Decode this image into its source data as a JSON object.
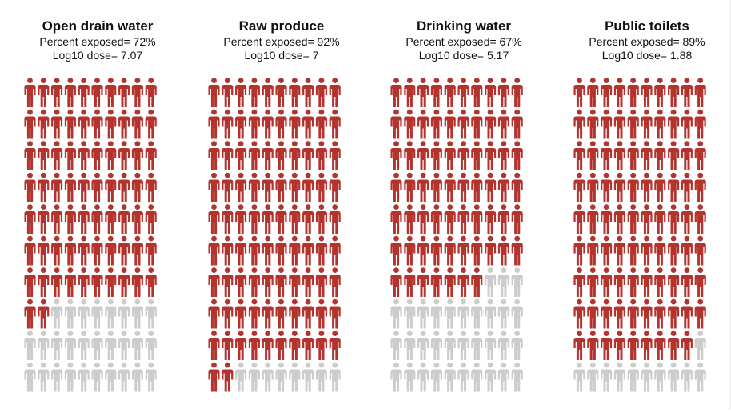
{
  "colors": {
    "exposed": "#b5332d",
    "unexposed": "#cccccc",
    "text": "#111111"
  },
  "icon": "person-icon",
  "grid": {
    "columns": 10,
    "rows": 10,
    "total": 100
  },
  "stat_labels": {
    "percent_exposed": "Percent exposed=",
    "log10_dose": "Log10 dose="
  },
  "chart_data": [
    {
      "type": "pictogram",
      "title": "Open drain water",
      "percent_exposed": "72%",
      "log10_dose": "7.07",
      "exposed_count": 72,
      "total": 100
    },
    {
      "type": "pictogram",
      "title": "Raw produce",
      "percent_exposed": "92%",
      "log10_dose": "7",
      "exposed_count": 92,
      "total": 100
    },
    {
      "type": "pictogram",
      "title": "Drinking water",
      "percent_exposed": "67%",
      "log10_dose": "5.17",
      "exposed_count": 67,
      "total": 100
    },
    {
      "type": "pictogram",
      "title": "Public toilets",
      "percent_exposed": "89%",
      "log10_dose": "1.88",
      "exposed_count": 89,
      "total": 100
    }
  ]
}
